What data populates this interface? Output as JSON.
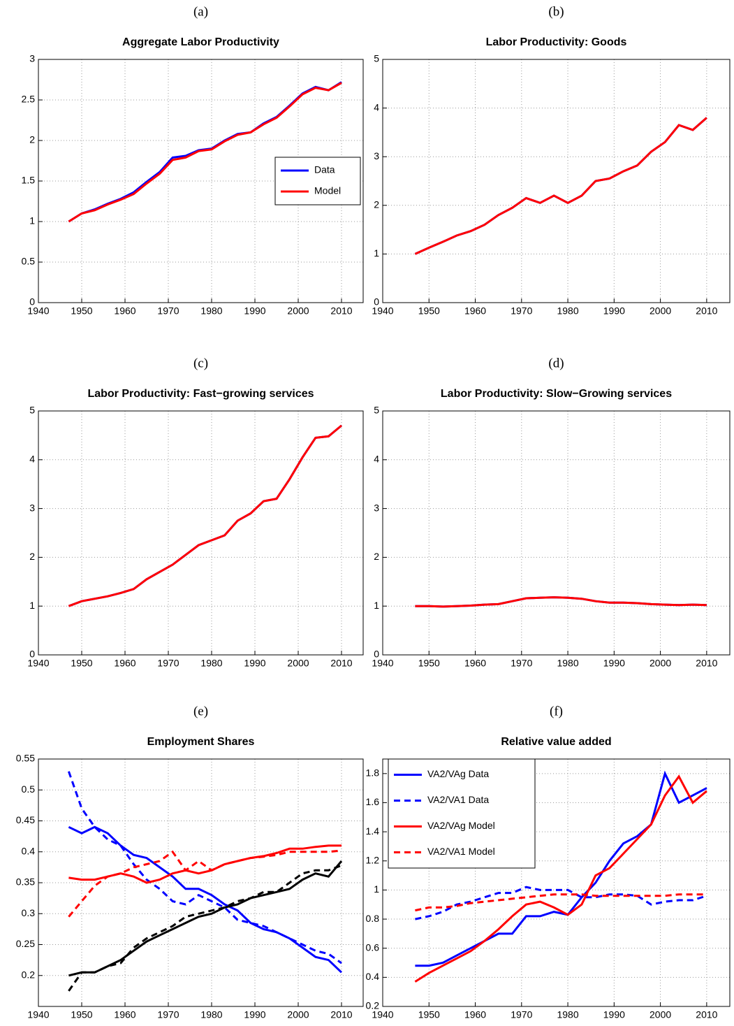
{
  "chart_data": [
    {
      "type": "line",
      "panel_label": "(a)",
      "title": "Aggregate Labor Productivity",
      "x": [
        1947,
        1950,
        1953,
        1956,
        1959,
        1962,
        1965,
        1968,
        1971,
        1974,
        1977,
        1980,
        1983,
        1986,
        1989,
        1992,
        1995,
        1998,
        2001,
        2004,
        2007,
        2010
      ],
      "series": [
        {
          "name": "Data",
          "color": "#0000ff",
          "linestyle": "solid",
          "values": [
            1.0,
            1.1,
            1.15,
            1.22,
            1.28,
            1.36,
            1.49,
            1.61,
            1.79,
            1.81,
            1.88,
            1.9,
            2.0,
            2.08,
            2.1,
            2.21,
            2.29,
            2.43,
            2.58,
            2.66,
            2.62,
            2.72
          ]
        },
        {
          "name": "Model",
          "color": "#ff0000",
          "linestyle": "solid",
          "values": [
            1.0,
            1.1,
            1.14,
            1.21,
            1.27,
            1.34,
            1.47,
            1.59,
            1.76,
            1.79,
            1.87,
            1.89,
            1.99,
            2.07,
            2.1,
            2.2,
            2.28,
            2.42,
            2.57,
            2.65,
            2.62,
            2.71
          ]
        }
      ],
      "xlim": [
        1940,
        2015
      ],
      "xticks": [
        1940,
        1950,
        1960,
        1970,
        1980,
        1990,
        2000,
        2010
      ],
      "ylim": [
        0,
        3
      ],
      "yticks": [
        0,
        0.5,
        1,
        1.5,
        2,
        2.5,
        3
      ],
      "grid": true,
      "legend": "east"
    },
    {
      "type": "line",
      "panel_label": "(b)",
      "title": "Labor Productivity: Goods",
      "x": [
        1947,
        1950,
        1953,
        1956,
        1959,
        1962,
        1965,
        1968,
        1971,
        1974,
        1977,
        1980,
        1983,
        1986,
        1989,
        1992,
        1995,
        1998,
        2001,
        2004,
        2007,
        2010
      ],
      "series": [
        {
          "color": "#0000ff",
          "linestyle": "solid",
          "values": [
            1.0,
            1.13,
            1.25,
            1.38,
            1.47,
            1.6,
            1.8,
            1.95,
            2.15,
            2.05,
            2.2,
            2.05,
            2.2,
            2.5,
            2.55,
            2.7,
            2.82,
            3.1,
            3.3,
            3.65,
            3.55,
            3.8
          ]
        },
        {
          "color": "#ff0000",
          "linestyle": "solid",
          "values": [
            1.0,
            1.13,
            1.25,
            1.38,
            1.47,
            1.6,
            1.8,
            1.95,
            2.15,
            2.05,
            2.2,
            2.05,
            2.2,
            2.5,
            2.55,
            2.7,
            2.82,
            3.1,
            3.3,
            3.65,
            3.55,
            3.8
          ]
        }
      ],
      "xlim": [
        1940,
        2015
      ],
      "xticks": [
        1940,
        1950,
        1960,
        1970,
        1980,
        1990,
        2000,
        2010
      ],
      "ylim": [
        0,
        5
      ],
      "yticks": [
        0,
        1,
        2,
        3,
        4,
        5
      ],
      "grid": true
    },
    {
      "type": "line",
      "panel_label": "(c)",
      "title": "Labor Productivity: Fast−growing services",
      "x": [
        1947,
        1950,
        1953,
        1956,
        1959,
        1962,
        1965,
        1968,
        1971,
        1974,
        1977,
        1980,
        1983,
        1986,
        1989,
        1992,
        1995,
        1998,
        2001,
        2004,
        2007,
        2010
      ],
      "series": [
        {
          "color": "#0000ff",
          "linestyle": "solid",
          "values": [
            1.0,
            1.1,
            1.15,
            1.2,
            1.27,
            1.35,
            1.55,
            1.7,
            1.85,
            2.05,
            2.25,
            2.35,
            2.45,
            2.75,
            2.9,
            3.15,
            3.2,
            3.6,
            4.05,
            4.45,
            4.48,
            4.7
          ]
        },
        {
          "color": "#ff0000",
          "linestyle": "solid",
          "values": [
            1.0,
            1.1,
            1.15,
            1.2,
            1.27,
            1.35,
            1.55,
            1.7,
            1.85,
            2.05,
            2.25,
            2.35,
            2.45,
            2.75,
            2.9,
            3.15,
            3.2,
            3.6,
            4.05,
            4.45,
            4.48,
            4.7
          ]
        }
      ],
      "xlim": [
        1940,
        2015
      ],
      "xticks": [
        1940,
        1950,
        1960,
        1970,
        1980,
        1990,
        2000,
        2010
      ],
      "ylim": [
        0,
        5
      ],
      "yticks": [
        0,
        1,
        2,
        3,
        4,
        5
      ],
      "grid": true
    },
    {
      "type": "line",
      "panel_label": "(d)",
      "title": "Labor Productivity: Slow−Growing services",
      "x": [
        1947,
        1950,
        1953,
        1956,
        1959,
        1962,
        1965,
        1968,
        1971,
        1974,
        1977,
        1980,
        1983,
        1986,
        1989,
        1992,
        1995,
        1998,
        2001,
        2004,
        2007,
        2010
      ],
      "series": [
        {
          "color": "#0000ff",
          "linestyle": "solid",
          "values": [
            1.0,
            1.0,
            0.99,
            1.0,
            1.01,
            1.03,
            1.04,
            1.1,
            1.16,
            1.17,
            1.18,
            1.17,
            1.15,
            1.1,
            1.07,
            1.07,
            1.06,
            1.04,
            1.03,
            1.02,
            1.03,
            1.02
          ]
        },
        {
          "color": "#ff0000",
          "linestyle": "solid",
          "values": [
            1.0,
            1.0,
            0.99,
            1.0,
            1.01,
            1.03,
            1.04,
            1.1,
            1.16,
            1.17,
            1.18,
            1.17,
            1.15,
            1.1,
            1.07,
            1.07,
            1.06,
            1.04,
            1.03,
            1.02,
            1.03,
            1.02
          ]
        }
      ],
      "xlim": [
        1940,
        2015
      ],
      "xticks": [
        1940,
        1950,
        1960,
        1970,
        1980,
        1990,
        2000,
        2010
      ],
      "ylim": [
        0,
        5
      ],
      "yticks": [
        0,
        1,
        2,
        3,
        4,
        5
      ],
      "grid": true
    },
    {
      "type": "line",
      "panel_label": "(e)",
      "title": "Employment Shares",
      "x": [
        1947,
        1950,
        1953,
        1956,
        1959,
        1962,
        1965,
        1968,
        1971,
        1974,
        1977,
        1980,
        1983,
        1986,
        1989,
        1992,
        1995,
        1998,
        2001,
        2004,
        2007,
        2010
      ],
      "series": [
        {
          "color": "#0000ff",
          "linestyle": "solid",
          "values": [
            0.44,
            0.43,
            0.44,
            0.43,
            0.41,
            0.395,
            0.39,
            0.375,
            0.36,
            0.34,
            0.34,
            0.33,
            0.315,
            0.305,
            0.285,
            0.275,
            0.27,
            0.26,
            0.245,
            0.23,
            0.225,
            0.205
          ]
        },
        {
          "color": "#0000ff",
          "linestyle": "dashed",
          "values": [
            0.53,
            0.47,
            0.44,
            0.42,
            0.41,
            0.38,
            0.355,
            0.34,
            0.32,
            0.315,
            0.33,
            0.32,
            0.31,
            0.29,
            0.285,
            0.28,
            0.27,
            0.26,
            0.25,
            0.24,
            0.235,
            0.22
          ]
        },
        {
          "color": "#ff0000",
          "linestyle": "solid",
          "values": [
            0.358,
            0.355,
            0.355,
            0.36,
            0.365,
            0.36,
            0.35,
            0.355,
            0.365,
            0.37,
            0.365,
            0.37,
            0.38,
            0.385,
            0.39,
            0.393,
            0.398,
            0.405,
            0.405,
            0.408,
            0.41,
            0.41
          ]
        },
        {
          "color": "#ff0000",
          "linestyle": "dashed",
          "values": [
            0.295,
            0.32,
            0.345,
            0.36,
            0.365,
            0.375,
            0.38,
            0.385,
            0.4,
            0.37,
            0.385,
            0.37,
            0.38,
            0.385,
            0.39,
            0.392,
            0.395,
            0.4,
            0.4,
            0.4,
            0.4,
            0.402
          ]
        },
        {
          "color": "#000000",
          "linestyle": "solid",
          "values": [
            0.2,
            0.205,
            0.205,
            0.215,
            0.225,
            0.24,
            0.255,
            0.265,
            0.275,
            0.285,
            0.295,
            0.3,
            0.31,
            0.315,
            0.325,
            0.33,
            0.335,
            0.34,
            0.355,
            0.365,
            0.36,
            0.385
          ]
        },
        {
          "color": "#000000",
          "linestyle": "dashed",
          "values": [
            0.175,
            0.205,
            0.205,
            0.215,
            0.22,
            0.245,
            0.26,
            0.27,
            0.28,
            0.295,
            0.3,
            0.305,
            0.31,
            0.32,
            0.325,
            0.335,
            0.335,
            0.35,
            0.365,
            0.37,
            0.37,
            0.378
          ]
        }
      ],
      "xlim": [
        1940,
        2015
      ],
      "xticks": [
        1940,
        1950,
        1960,
        1970,
        1980,
        1990,
        2000,
        2010
      ],
      "ylim": [
        0.15,
        0.55
      ],
      "yticks": [
        0.2,
        0.25,
        0.3,
        0.35,
        0.4,
        0.45,
        0.5,
        0.55
      ],
      "grid": true
    },
    {
      "type": "line",
      "panel_label": "(f)",
      "title": "Relative value added",
      "x": [
        1947,
        1950,
        1953,
        1956,
        1959,
        1962,
        1965,
        1968,
        1971,
        1974,
        1977,
        1980,
        1983,
        1986,
        1989,
        1992,
        1995,
        1998,
        2001,
        2004,
        2007,
        2010
      ],
      "series": [
        {
          "name": "VA2/VAg Data",
          "color": "#0000ff",
          "linestyle": "solid",
          "values": [
            0.48,
            0.48,
            0.5,
            0.55,
            0.6,
            0.65,
            0.7,
            0.7,
            0.82,
            0.82,
            0.85,
            0.83,
            0.95,
            1.05,
            1.2,
            1.32,
            1.37,
            1.45,
            1.8,
            1.6,
            1.65,
            1.7
          ]
        },
        {
          "name": "VA2/VA1 Data",
          "color": "#0000ff",
          "linestyle": "dashed",
          "values": [
            0.8,
            0.82,
            0.85,
            0.9,
            0.92,
            0.95,
            0.98,
            0.98,
            1.02,
            1.0,
            1.0,
            1.0,
            0.95,
            0.95,
            0.97,
            0.97,
            0.96,
            0.9,
            0.92,
            0.93,
            0.93,
            0.96
          ]
        },
        {
          "name": "VA2/VAg Model",
          "color": "#ff0000",
          "linestyle": "solid",
          "values": [
            0.37,
            0.43,
            0.48,
            0.53,
            0.58,
            0.65,
            0.73,
            0.82,
            0.9,
            0.92,
            0.88,
            0.83,
            0.9,
            1.1,
            1.15,
            1.25,
            1.35,
            1.45,
            1.65,
            1.78,
            1.6,
            1.68
          ]
        },
        {
          "name": "VA2/VA1 Model",
          "color": "#ff0000",
          "linestyle": "dashed",
          "values": [
            0.86,
            0.88,
            0.88,
            0.89,
            0.91,
            0.92,
            0.93,
            0.94,
            0.95,
            0.96,
            0.97,
            0.97,
            0.97,
            0.96,
            0.96,
            0.96,
            0.96,
            0.96,
            0.96,
            0.97,
            0.97,
            0.97
          ]
        }
      ],
      "xlim": [
        1940,
        2015
      ],
      "xticks": [
        1940,
        1950,
        1960,
        1970,
        1980,
        1990,
        2000,
        2010
      ],
      "ylim": [
        0.2,
        1.9
      ],
      "yticks": [
        0.2,
        0.4,
        0.6,
        0.8,
        1,
        1.2,
        1.4,
        1.6,
        1.8
      ],
      "grid": true,
      "legend": "upper left"
    }
  ]
}
